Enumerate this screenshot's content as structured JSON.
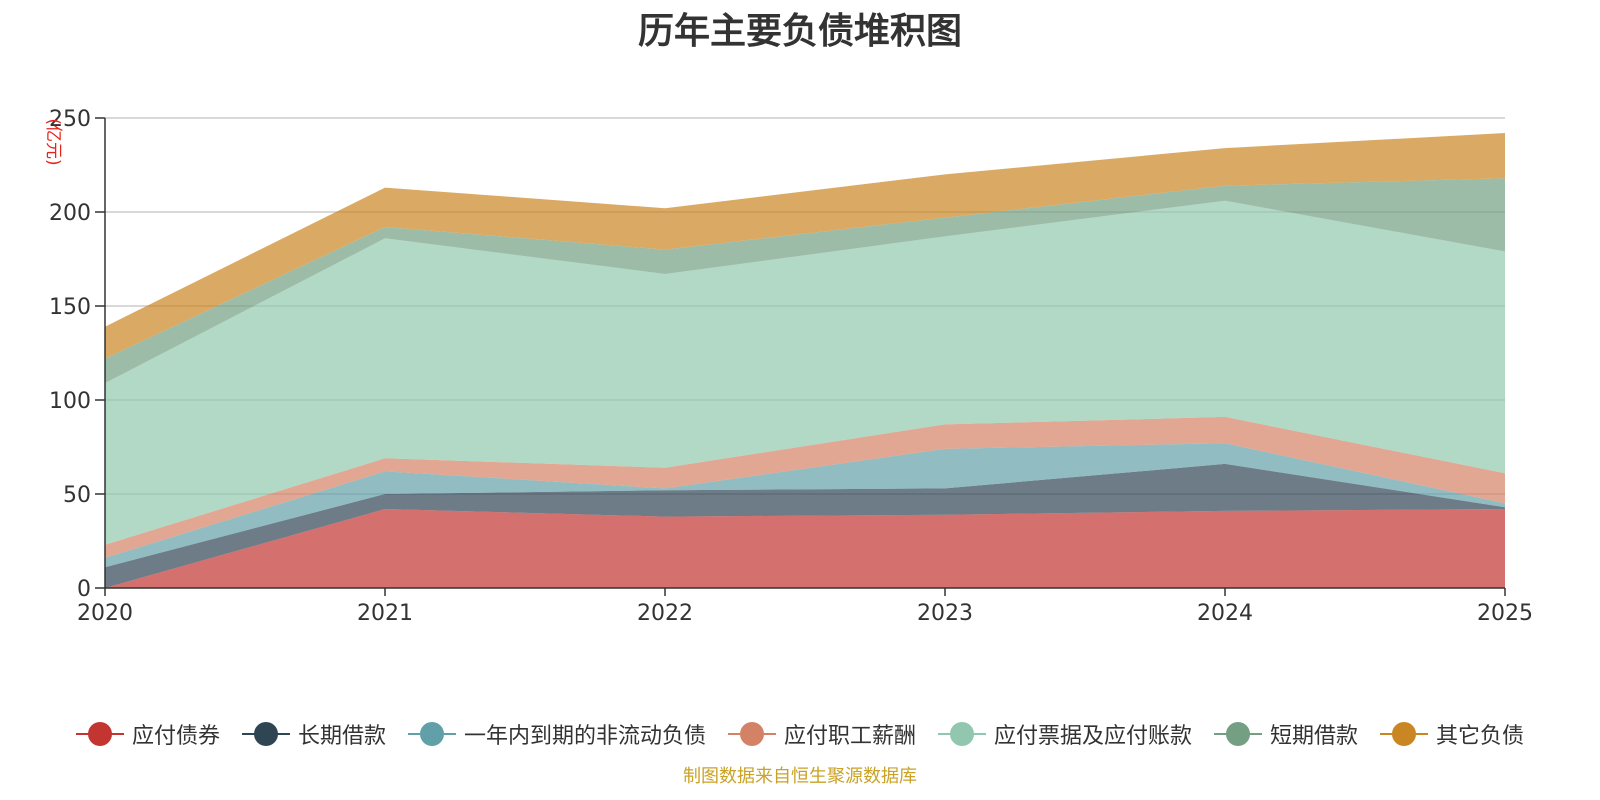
{
  "chart_data": {
    "type": "area",
    "stacked": true,
    "title": "历年主要负债堆积图",
    "ylabel": "(亿元)",
    "xlabel": "",
    "ylim": [
      0,
      250
    ],
    "yticks": [
      0,
      50,
      100,
      150,
      200,
      250
    ],
    "grid": true,
    "legend_position": "bottom",
    "categories": [
      "2020",
      "2021",
      "2022",
      "2023",
      "2024",
      "2025"
    ],
    "series": [
      {
        "name": "应付债券",
        "color": "#c23531",
        "values": [
          0,
          42,
          38,
          39,
          41,
          42
        ]
      },
      {
        "name": "长期借款",
        "color": "#2f4554",
        "values": [
          11,
          8,
          14,
          14,
          25,
          1
        ]
      },
      {
        "name": "一年内到期的非流动负债",
        "color": "#61a0a8",
        "values": [
          5,
          12,
          1,
          21,
          11,
          2
        ]
      },
      {
        "name": "应付职工薪酬",
        "color": "#d48265",
        "values": [
          7,
          7,
          11,
          13,
          14,
          16
        ]
      },
      {
        "name": "应付票据及应付账款",
        "color": "#91c7ae",
        "values": [
          86,
          117,
          103,
          100,
          115,
          118
        ]
      },
      {
        "name": "短期借款",
        "color": "#749f83",
        "values": [
          13,
          6,
          13,
          10,
          8,
          39
        ]
      },
      {
        "name": "其它负债",
        "color": "#ca8622",
        "values": [
          17,
          21,
          22,
          23,
          20,
          24
        ]
      }
    ],
    "source_note": "制图数据来自恒生聚源数据库",
    "source_color": "#c9a227"
  }
}
